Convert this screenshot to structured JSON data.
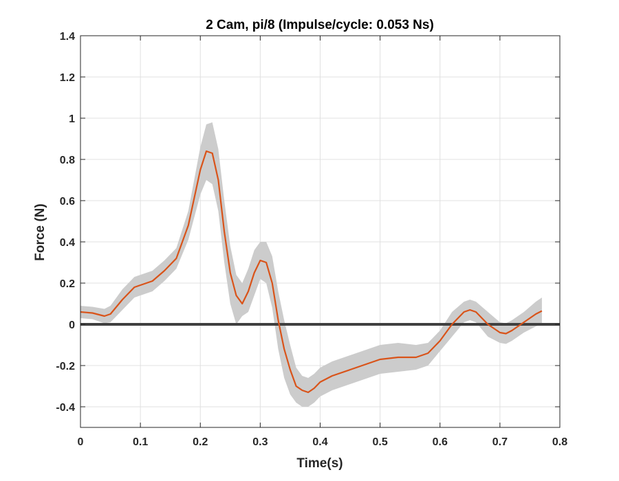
{
  "chart_data": {
    "type": "line",
    "title": "2 Cam, pi/8 (Impulse/cycle: 0.053 Ns)",
    "xlabel": "Time(s)",
    "ylabel": "Force (N)",
    "xlim": [
      0,
      0.8
    ],
    "ylim": [
      -0.5,
      1.4
    ],
    "xticks": [
      "0",
      "0.1",
      "0.2",
      "0.3",
      "0.4",
      "0.5",
      "0.6",
      "0.7",
      "0.8"
    ],
    "yticks": [
      "-0.4",
      "-0.2",
      "0",
      "0.2",
      "0.4",
      "0.6",
      "0.8",
      "1",
      "1.2",
      "1.4"
    ],
    "grid": true,
    "colors": {
      "mean_line": "#D95319",
      "band": "#CCCCCC",
      "zero_line": "#404040",
      "grid": "#E0E0E0",
      "axes": "#262626"
    },
    "series": [
      {
        "role": "mean",
        "x": [
          0,
          0.02,
          0.04,
          0.05,
          0.07,
          0.09,
          0.1,
          0.12,
          0.14,
          0.16,
          0.18,
          0.2,
          0.21,
          0.22,
          0.23,
          0.24,
          0.25,
          0.26,
          0.27,
          0.28,
          0.29,
          0.3,
          0.31,
          0.32,
          0.33,
          0.34,
          0.35,
          0.36,
          0.37,
          0.38,
          0.39,
          0.4,
          0.42,
          0.45,
          0.48,
          0.5,
          0.53,
          0.56,
          0.58,
          0.6,
          0.62,
          0.64,
          0.65,
          0.66,
          0.68,
          0.7,
          0.71,
          0.72,
          0.74,
          0.76,
          0.77
        ],
        "y": [
          0.06,
          0.055,
          0.04,
          0.05,
          0.12,
          0.18,
          0.19,
          0.21,
          0.26,
          0.32,
          0.48,
          0.75,
          0.84,
          0.83,
          0.7,
          0.45,
          0.25,
          0.14,
          0.1,
          0.16,
          0.25,
          0.31,
          0.3,
          0.2,
          0.02,
          -0.12,
          -0.22,
          -0.3,
          -0.32,
          -0.33,
          -0.31,
          -0.28,
          -0.25,
          -0.22,
          -0.19,
          -0.17,
          -0.16,
          -0.16,
          -0.14,
          -0.08,
          0.0,
          0.06,
          0.07,
          0.06,
          0.0,
          -0.04,
          -0.045,
          -0.03,
          0.01,
          0.05,
          0.065
        ]
      },
      {
        "role": "band-upper",
        "x": [
          0,
          0.02,
          0.04,
          0.05,
          0.07,
          0.09,
          0.1,
          0.12,
          0.14,
          0.16,
          0.18,
          0.2,
          0.21,
          0.22,
          0.23,
          0.24,
          0.25,
          0.26,
          0.27,
          0.28,
          0.29,
          0.3,
          0.31,
          0.32,
          0.33,
          0.34,
          0.35,
          0.36,
          0.37,
          0.38,
          0.39,
          0.4,
          0.42,
          0.45,
          0.48,
          0.5,
          0.53,
          0.56,
          0.58,
          0.6,
          0.62,
          0.64,
          0.65,
          0.66,
          0.68,
          0.7,
          0.71,
          0.72,
          0.74,
          0.76,
          0.77
        ],
        "y": [
          0.09,
          0.085,
          0.075,
          0.09,
          0.17,
          0.23,
          0.24,
          0.26,
          0.31,
          0.37,
          0.55,
          0.86,
          0.97,
          0.98,
          0.85,
          0.6,
          0.38,
          0.24,
          0.2,
          0.27,
          0.36,
          0.4,
          0.4,
          0.33,
          0.16,
          0.02,
          -0.1,
          -0.21,
          -0.25,
          -0.26,
          -0.24,
          -0.21,
          -0.18,
          -0.15,
          -0.12,
          -0.1,
          -0.09,
          -0.1,
          -0.09,
          -0.03,
          0.06,
          0.11,
          0.12,
          0.11,
          0.06,
          0.01,
          0.005,
          0.02,
          0.06,
          0.11,
          0.13
        ]
      },
      {
        "role": "band-lower",
        "x": [
          0,
          0.02,
          0.04,
          0.05,
          0.07,
          0.09,
          0.1,
          0.12,
          0.14,
          0.16,
          0.18,
          0.2,
          0.21,
          0.22,
          0.23,
          0.24,
          0.25,
          0.26,
          0.27,
          0.28,
          0.29,
          0.3,
          0.31,
          0.32,
          0.33,
          0.34,
          0.35,
          0.36,
          0.37,
          0.38,
          0.39,
          0.4,
          0.42,
          0.45,
          0.48,
          0.5,
          0.53,
          0.56,
          0.58,
          0.6,
          0.62,
          0.64,
          0.65,
          0.66,
          0.68,
          0.7,
          0.71,
          0.72,
          0.74,
          0.76,
          0.77
        ],
        "y": [
          0.03,
          0.025,
          0.005,
          0.01,
          0.07,
          0.13,
          0.14,
          0.16,
          0.21,
          0.27,
          0.41,
          0.63,
          0.7,
          0.68,
          0.55,
          0.3,
          0.1,
          0.0,
          0.04,
          0.06,
          0.14,
          0.22,
          0.2,
          0.08,
          -0.12,
          -0.26,
          -0.34,
          -0.38,
          -0.4,
          -0.4,
          -0.38,
          -0.35,
          -0.32,
          -0.29,
          -0.26,
          -0.24,
          -0.23,
          -0.22,
          -0.2,
          -0.13,
          -0.06,
          0.01,
          0.02,
          0.01,
          -0.06,
          -0.09,
          -0.095,
          -0.08,
          -0.04,
          -0.01,
          0.0
        ]
      }
    ],
    "reference_line": {
      "y": 0
    }
  }
}
